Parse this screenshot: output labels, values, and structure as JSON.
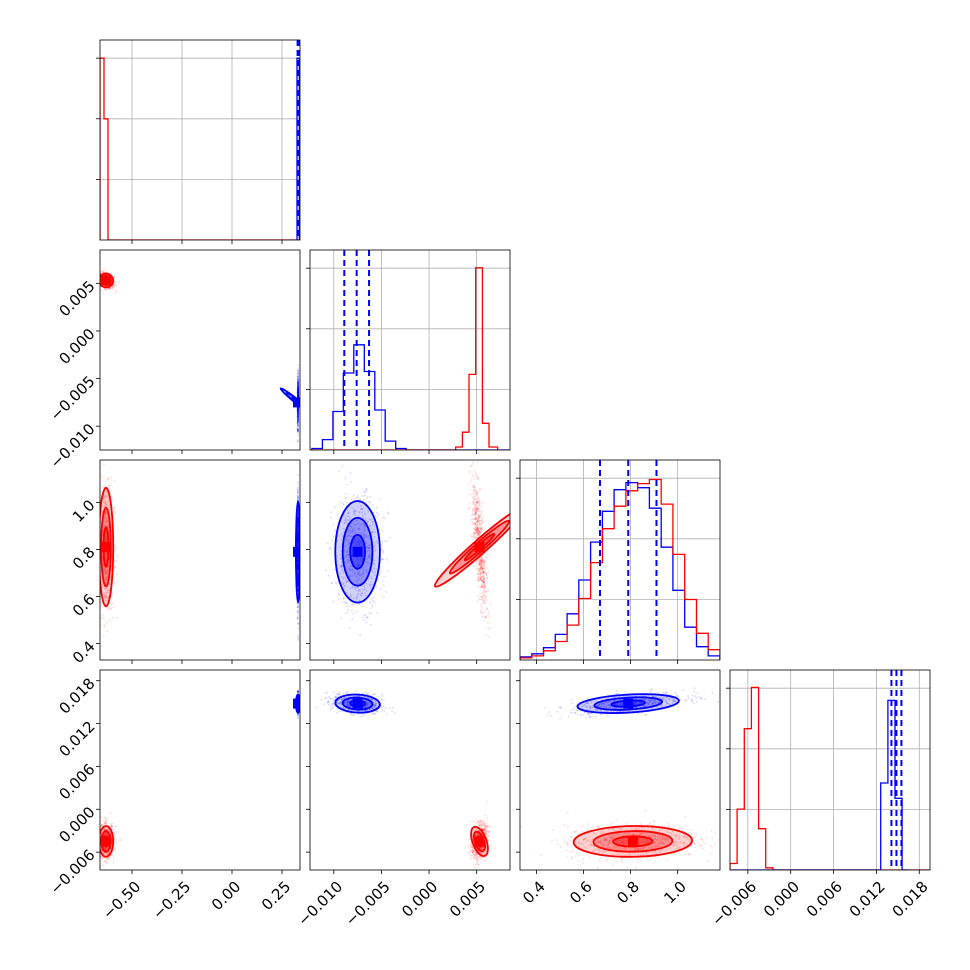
{
  "chart_data": {
    "type": "corner",
    "title": "",
    "colors": {
      "run_red": "#ff0000",
      "run_blue": "#0000ff",
      "grid": "#b0b0b0"
    },
    "series": [
      {
        "color": "#ff0000",
        "means": [
          -0.63,
          0.0053,
          0.81,
          -0.0045
        ],
        "stds": [
          0.02,
          0.0004,
          0.14,
          0.0012
        ]
      },
      {
        "color": "#0000ff",
        "means": [
          0.33,
          -0.0075,
          0.79,
          0.0148
        ],
        "stds": [
          0.001,
          0.0013,
          0.12,
          0.0007
        ]
      }
    ],
    "quantile_lines": [
      {
        "var": 0,
        "color": "#0000ff",
        "values": [
          0.328,
          0.33,
          0.332,
          0.334
        ]
      },
      {
        "var": 1,
        "color": "#0000ff",
        "values": [
          -0.0089,
          -0.0076,
          -0.0063
        ]
      },
      {
        "var": 2,
        "color": "#0000ff",
        "values": [
          0.67,
          0.79,
          0.91
        ]
      },
      {
        "var": 3,
        "color": "#0000ff",
        "values": [
          0.0141,
          0.0148,
          0.0155
        ]
      }
    ],
    "ranges": [
      [
        -0.66,
        0.34
      ],
      [
        -0.0125,
        0.0085
      ],
      [
        0.33,
        1.18
      ],
      [
        -0.0085,
        0.0195
      ]
    ],
    "ticks": [
      {
        "values": [
          -0.5,
          -0.25,
          0.0,
          0.25
        ],
        "labels": [
          "−0.50",
          "−0.25",
          "0.00",
          "0.25"
        ]
      },
      {
        "values": [
          -0.01,
          -0.005,
          0.0,
          0.005
        ],
        "labels": [
          "−0.010",
          "−0.005",
          "0.000",
          "0.005"
        ]
      },
      {
        "values": [
          0.4,
          0.6,
          0.8,
          1.0
        ],
        "labels": [
          "0.4",
          "0.6",
          "0.8",
          "1.0"
        ]
      },
      {
        "values": [
          -0.006,
          0.0,
          0.006,
          0.012,
          0.018
        ],
        "labels": [
          "−0.006",
          "0.000",
          "0.006",
          "0.012",
          "0.018"
        ]
      }
    ],
    "histograms": [
      {
        "var": 0,
        "series": [
          {
            "color": "#ff0000",
            "edges": [
              -0.66,
              -0.64,
              -0.62,
              -0.6,
              -0.58,
              0.34
            ],
            "counts": [
              3.0,
              2.0,
              0.0,
              0.0,
              0.0
            ]
          },
          {
            "color": "#0000ff",
            "edges": [
              0.325,
              0.328,
              0.331,
              0.334,
              0.337
            ],
            "counts": [
              3.0,
              3.0,
              3.0,
              3.0
            ]
          }
        ],
        "ymax": 3.3
      },
      {
        "var": 1,
        "series": [
          {
            "color": "#0000ff",
            "edges": [
              -0.0123,
              -0.0112,
              -0.0101,
              -0.009,
              -0.0079,
              -0.0068,
              -0.0057,
              -0.0046,
              -0.0035,
              -0.0024,
              0.0085
            ],
            "counts": [
              0.1,
              0.7,
              2.6,
              5.2,
              7.1,
              5.3,
              2.7,
              0.6,
              0.1,
              0.0
            ]
          },
          {
            "color": "#ff0000",
            "edges": [
              -0.0125,
              0.0028,
              0.0035,
              0.0042,
              0.0049,
              0.0056,
              0.0063,
              0.0072
            ],
            "counts": [
              0.0,
              0.2,
              1.2,
              5.1,
              12.3,
              1.8,
              0.2
            ]
          }
        ],
        "ymax": 13.5
      },
      {
        "var": 2,
        "series": [
          {
            "color": "#0000ff",
            "edges": [
              0.33,
              0.38,
              0.43,
              0.48,
              0.53,
              0.58,
              0.63,
              0.68,
              0.73,
              0.78,
              0.83,
              0.88,
              0.93,
              0.98,
              1.03,
              1.08,
              1.13,
              1.18
            ],
            "counts": [
              0.3,
              0.6,
              1.2,
              2.5,
              4.5,
              7.8,
              11.5,
              14.5,
              16.6,
              17.3,
              16.8,
              14.8,
              11.0,
              6.8,
              3.2,
              1.3,
              0.4
            ]
          },
          {
            "color": "#ff0000",
            "edges": [
              0.33,
              0.38,
              0.43,
              0.48,
              0.53,
              0.58,
              0.63,
              0.68,
              0.73,
              0.78,
              0.83,
              0.88,
              0.93,
              0.98,
              1.03,
              1.08,
              1.13,
              1.18
            ],
            "counts": [
              0.2,
              0.4,
              0.9,
              1.8,
              3.4,
              6.0,
              9.5,
              12.8,
              15.0,
              16.5,
              17.2,
              17.6,
              15.2,
              10.3,
              5.9,
              2.6,
              1.0
            ]
          }
        ],
        "ymax": 19.5
      },
      {
        "var": 3,
        "series": [
          {
            "color": "#ff0000",
            "edges": [
              -0.0085,
              -0.0075,
              -0.0065,
              -0.0055,
              -0.0045,
              -0.0035,
              -0.0025,
              -0.0015,
              0.0195
            ],
            "counts": [
              0.3,
              2.8,
              6.5,
              8.4,
              1.9,
              0.1,
              0.0,
              0.0
            ]
          },
          {
            "color": "#0000ff",
            "edges": [
              -0.0085,
              0.0126,
              0.0136,
              0.0146,
              0.0156,
              0.0166
            ],
            "counts": [
              0.0,
              4.0,
              7.8,
              3.3,
              0.0
            ]
          }
        ],
        "ymax": 9.2
      }
    ]
  }
}
